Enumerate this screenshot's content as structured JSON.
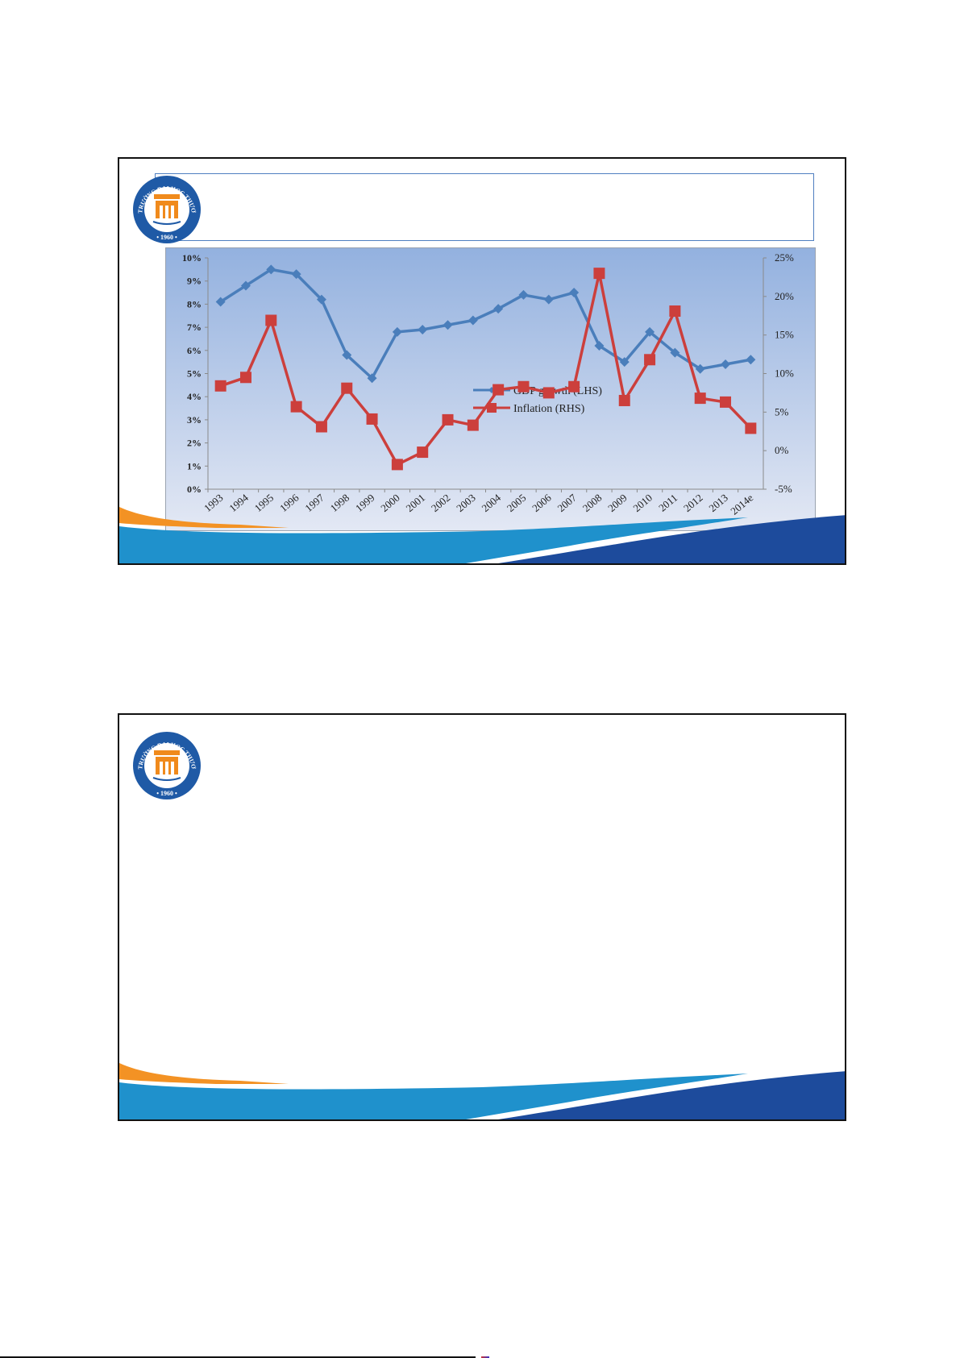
{
  "slides": [
    {
      "logo": {
        "text": "TRƯỜNG ĐẠI HỌC THƯƠNG MẠI",
        "year": "1960"
      }
    },
    {
      "logo": {
        "text": "TRƯỜNG ĐẠI HỌC THƯƠNG MẠI",
        "year": "1960"
      }
    }
  ],
  "colors": {
    "gdp": "#4a7ebb",
    "inflation": "#cc3f3c",
    "panel_top": "#93b1df",
    "panel_bottom": "#e3e8f4",
    "wave_orange": "#f39224",
    "wave_light_blue": "#1f91cc",
    "wave_dark_blue": "#1d4b9c"
  },
  "chart_data": {
    "type": "line",
    "title": "",
    "categories": [
      "1993",
      "1994",
      "1995",
      "1996",
      "1997",
      "1998",
      "1999",
      "2000",
      "2001",
      "2002",
      "2003",
      "2004",
      "2005",
      "2006",
      "2007",
      "2008",
      "2009",
      "2010",
      "2011",
      "2012",
      "2013",
      "2014e"
    ],
    "series": [
      {
        "name": "GDP growth (LHS)",
        "axis": "left",
        "marker": "diamond",
        "values": [
          8.1,
          8.8,
          9.5,
          9.3,
          8.2,
          5.8,
          4.8,
          6.8,
          6.9,
          7.1,
          7.3,
          7.8,
          8.4,
          8.2,
          8.5,
          6.2,
          5.5,
          6.8,
          5.9,
          5.2,
          5.4,
          5.6
        ]
      },
      {
        "name": "Inflation (RHS)",
        "axis": "right",
        "marker": "square",
        "values": [
          8.4,
          9.5,
          16.9,
          5.7,
          3.1,
          8.1,
          4.1,
          -1.8,
          -0.2,
          4.0,
          3.3,
          7.9,
          8.3,
          7.5,
          8.3,
          23.0,
          6.5,
          11.8,
          18.1,
          6.8,
          6.3,
          2.9
        ]
      }
    ],
    "left_axis": {
      "ylim": [
        0,
        10
      ],
      "ticks": [
        "0%",
        "1%",
        "2%",
        "3%",
        "4%",
        "5%",
        "6%",
        "7%",
        "8%",
        "9%",
        "10%"
      ]
    },
    "right_axis": {
      "ylim": [
        -5,
        25
      ],
      "ticks": [
        "-5%",
        "0%",
        "5%",
        "10%",
        "15%",
        "20%",
        "25%"
      ]
    },
    "grid": false,
    "legend": "center-right"
  }
}
